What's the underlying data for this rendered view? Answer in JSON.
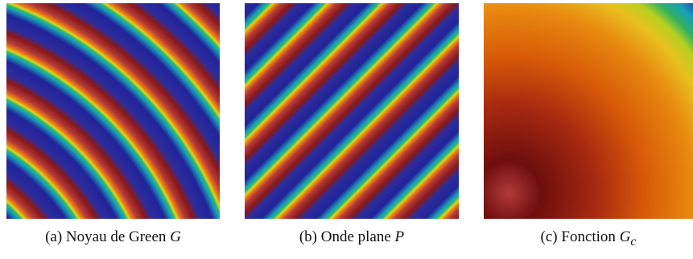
{
  "figures": [
    {
      "label": "(a)",
      "caption": "Noyau de Green",
      "symbol": "G"
    },
    {
      "label": "(b)",
      "caption": "Onde plane",
      "symbol": "P"
    },
    {
      "label": "(c)",
      "caption": "Fonction",
      "symbol": "G",
      "subscript": "c"
    }
  ]
}
